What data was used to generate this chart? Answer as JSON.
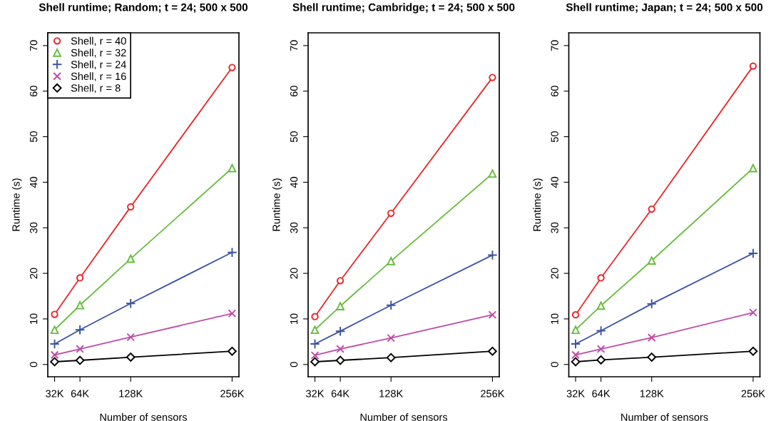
{
  "chart_data": [
    {
      "type": "line",
      "title": "Shell runtime; Random; t = 24; 500 x 500",
      "xlabel": "Number of sensors",
      "ylabel": "Runtime (s)",
      "x": [
        32,
        64,
        128,
        256
      ],
      "xlim": [
        23.4,
        264.6
      ],
      "xticks": [
        {
          "value": 32,
          "label": "32K"
        },
        {
          "value": 64,
          "label": "64K"
        },
        {
          "value": 128,
          "label": "128K"
        },
        {
          "value": 256,
          "label": "256K"
        }
      ],
      "ylim": [
        -2.7,
        72.8
      ],
      "yticks": [
        0,
        10,
        20,
        30,
        40,
        50,
        60,
        70
      ],
      "grid": false,
      "legend": "top left",
      "series": [
        {
          "name": "Shell, r = 40",
          "color": "#e8262b",
          "marker": "circle",
          "values": [
            11.0,
            19.0,
            34.6,
            65.2
          ]
        },
        {
          "name": "Shell, r = 32",
          "color": "#66bd3c",
          "marker": "triangle",
          "values": [
            7.6,
            13.0,
            23.2,
            43.1
          ]
        },
        {
          "name": "Shell, r = 24",
          "color": "#3a53a4",
          "marker": "plus",
          "values": [
            4.5,
            7.6,
            13.4,
            24.6
          ]
        },
        {
          "name": "Shell, r = 16",
          "color": "#c04aa8",
          "marker": "cross",
          "values": [
            2.1,
            3.4,
            6.0,
            11.2
          ]
        },
        {
          "name": "Shell, r = 8",
          "color": "#000000",
          "marker": "diamond",
          "values": [
            0.6,
            0.9,
            1.6,
            2.9
          ]
        }
      ]
    },
    {
      "type": "line",
      "title": "Shell runtime; Cambridge; t = 24; 500 x 500",
      "xlabel": "Number of sensors",
      "ylabel": "Runtime (s)",
      "x": [
        32,
        64,
        128,
        256
      ],
      "xlim": [
        23.4,
        264.6
      ],
      "xticks": [
        {
          "value": 32,
          "label": "32K"
        },
        {
          "value": 64,
          "label": "64K"
        },
        {
          "value": 128,
          "label": "128K"
        },
        {
          "value": 256,
          "label": "256K"
        }
      ],
      "ylim": [
        -2.7,
        72.8
      ],
      "yticks": [
        0,
        10,
        20,
        30,
        40,
        50,
        60,
        70
      ],
      "grid": false,
      "series": [
        {
          "color": "#e8262b",
          "marker": "circle",
          "values": [
            10.5,
            18.4,
            33.2,
            63.0
          ]
        },
        {
          "color": "#66bd3c",
          "marker": "triangle",
          "values": [
            7.6,
            12.8,
            22.7,
            41.9
          ]
        },
        {
          "color": "#3a53a4",
          "marker": "plus",
          "values": [
            4.5,
            7.3,
            13.0,
            24.0
          ]
        },
        {
          "color": "#c04aa8",
          "marker": "cross",
          "values": [
            2.0,
            3.4,
            5.8,
            10.9
          ]
        },
        {
          "color": "#000000",
          "marker": "diamond",
          "values": [
            0.6,
            0.9,
            1.5,
            2.9
          ]
        }
      ]
    },
    {
      "type": "line",
      "title": "Shell runtime; Japan; t = 24; 500 x 500",
      "xlabel": "Number of sensors",
      "ylabel": "Runtime (s)",
      "x": [
        32,
        64,
        128,
        256
      ],
      "xlim": [
        23.4,
        264.6
      ],
      "xticks": [
        {
          "value": 32,
          "label": "32K"
        },
        {
          "value": 64,
          "label": "64K"
        },
        {
          "value": 128,
          "label": "128K"
        },
        {
          "value": 256,
          "label": "256K"
        }
      ],
      "ylim": [
        -2.7,
        72.8
      ],
      "yticks": [
        0,
        10,
        20,
        30,
        40,
        50,
        60,
        70
      ],
      "grid": false,
      "series": [
        {
          "color": "#e8262b",
          "marker": "circle",
          "values": [
            10.9,
            19.0,
            34.1,
            65.5
          ]
        },
        {
          "color": "#66bd3c",
          "marker": "triangle",
          "values": [
            7.6,
            12.9,
            22.8,
            43.1
          ]
        },
        {
          "color": "#3a53a4",
          "marker": "plus",
          "values": [
            4.5,
            7.4,
            13.3,
            24.4
          ]
        },
        {
          "color": "#c04aa8",
          "marker": "cross",
          "values": [
            2.1,
            3.4,
            5.9,
            11.4
          ]
        },
        {
          "color": "#000000",
          "marker": "diamond",
          "values": [
            0.6,
            1.0,
            1.6,
            2.9
          ]
        }
      ]
    }
  ]
}
